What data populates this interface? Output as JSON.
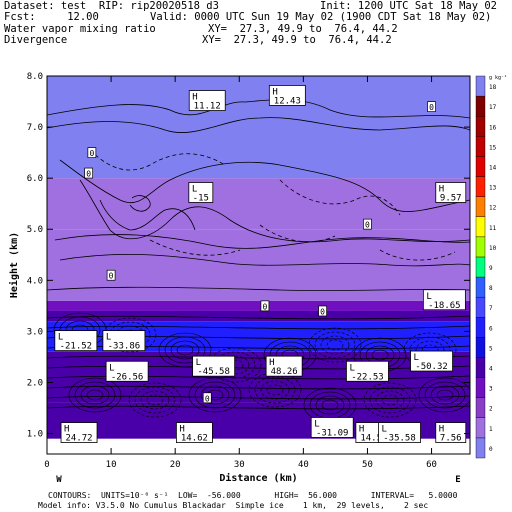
{
  "header": {
    "dataset_line": "Dataset: test  RIP: rip20020518 d3",
    "init_line": "Init: 1200 UTC Sat 18 May 02",
    "fcst_line": "Fcst:     12.00",
    "valid_line": "Valid: 0000 UTC Sun 19 May 02 (1900 CDT Sat 18 May 02)",
    "field1_line": "Water vapor mixing ratio",
    "xy1_line": "XY=  27.3, 49.9 to  76.4, 44.2",
    "field2_line": "Divergence",
    "xy2_line": "XY=  27.3, 49.9 to  76.4, 44.2"
  },
  "footer": {
    "contours_line": "CONTOURS:  UNITS=10⁻⁶ s⁻¹  LOW=  -56.000       HIGH=  56.000       INTERVAL=   5.0000",
    "model_line": "Model info: V3.5.0 No Cumulus Blackadar  Simple ice    1 km,  29 levels,    2 sec"
  },
  "colors": {
    "background": "#ffffff",
    "colorbar": [
      "#8080f0",
      "#a070e0",
      "#8a3ec8",
      "#7010c0",
      "#4a00a8",
      "#1010e0",
      "#2020ff",
      "#4848ff",
      "#3060ff",
      "#00ff80",
      "#a0ff00",
      "#ffff00",
      "#ff8000",
      "#ff2000",
      "#e00000",
      "#c00000",
      "#a00000",
      "#800000"
    ]
  },
  "chart_data": {
    "type": "heatmap",
    "title": "",
    "xlabel": "Distance (km)",
    "ylabel": "Height (km)",
    "xlim": [
      0,
      66
    ],
    "ylim": [
      0.6,
      8.0
    ],
    "x_ticks": [
      0,
      10,
      20,
      30,
      40,
      50,
      60
    ],
    "y_ticks": [
      1.0,
      2.0,
      3.0,
      4.0,
      5.0,
      6.0,
      7.0,
      8.0
    ],
    "x_end_labels": {
      "left": "W",
      "right": "E"
    },
    "colorbar": {
      "unit_label": "g kg⁻¹",
      "ticks": [
        0,
        1,
        2,
        3,
        4,
        5,
        6,
        7,
        8,
        9,
        10,
        11,
        12,
        13,
        14,
        15,
        16,
        17,
        18
      ]
    },
    "shaded_layers": [
      {
        "from_km": 0.9,
        "to_km": 1.6,
        "value_g_kg": 4
      },
      {
        "from_km": 1.6,
        "to_km": 2.6,
        "value_g_kg": 4
      },
      {
        "from_km": 2.6,
        "to_km": 3.2,
        "value_g_kg": 6
      },
      {
        "from_km": 3.2,
        "to_km": 3.4,
        "value_g_kg": 4
      },
      {
        "from_km": 3.4,
        "to_km": 3.6,
        "value_g_kg": 3
      },
      {
        "from_km": 3.6,
        "to_km": 5.0,
        "value_g_kg": 1
      },
      {
        "from_km": 5.0,
        "to_km": 6.0,
        "value_g_kg": 1
      },
      {
        "from_km": 6.0,
        "to_km": 8.0,
        "value_g_kg": 0
      }
    ],
    "extrema_labels": [
      {
        "kind": "H",
        "value": "11.12",
        "x": 25.0,
        "y": 7.5
      },
      {
        "kind": "H",
        "value": "12.43",
        "x": 37.5,
        "y": 7.6
      },
      {
        "kind": "L",
        "value": "-15",
        "x": 24.0,
        "y": 5.7
      },
      {
        "kind": "H",
        "value": "9.57",
        "x": 63.0,
        "y": 5.7
      },
      {
        "kind": "L",
        "value": "-18.65",
        "x": 62.0,
        "y": 3.6
      },
      {
        "kind": "L",
        "value": "-21.52",
        "x": 4.5,
        "y": 2.8
      },
      {
        "kind": "L",
        "value": "-33.86",
        "x": 12.0,
        "y": 2.8
      },
      {
        "kind": "L",
        "value": "-26.56",
        "x": 12.5,
        "y": 2.2
      },
      {
        "kind": "L",
        "value": "-45.58",
        "x": 26.0,
        "y": 2.3
      },
      {
        "kind": "H",
        "value": "48.26",
        "x": 37.0,
        "y": 2.3
      },
      {
        "kind": "L",
        "value": "-22.53",
        "x": 50.0,
        "y": 2.2
      },
      {
        "kind": "L",
        "value": "-50.32",
        "x": 60.0,
        "y": 2.4
      },
      {
        "kind": "H",
        "value": "24.72",
        "x": 5.0,
        "y": 1.0
      },
      {
        "kind": "H",
        "value": "14.62",
        "x": 23.0,
        "y": 1.0
      },
      {
        "kind": "L",
        "value": "-31.09",
        "x": 44.5,
        "y": 1.1
      },
      {
        "kind": "H",
        "value": "14.54",
        "x": 51.0,
        "y": 1.0
      },
      {
        "kind": "L",
        "value": "-35.58",
        "x": 55.0,
        "y": 1.0
      },
      {
        "kind": "H",
        "value": "7.56",
        "x": 63.0,
        "y": 1.0
      }
    ],
    "zero_contour_labels": [
      {
        "text": "0",
        "x": 60.0,
        "y": 7.4
      },
      {
        "text": "0",
        "x": 7.0,
        "y": 6.5
      },
      {
        "text": "0",
        "x": 6.5,
        "y": 6.1
      },
      {
        "text": "0",
        "x": 50.0,
        "y": 5.1
      },
      {
        "text": "0",
        "x": 10.0,
        "y": 4.1
      },
      {
        "text": "0",
        "x": 34.0,
        "y": 3.5
      },
      {
        "text": "0",
        "x": 43.0,
        "y": 3.4
      },
      {
        "text": "0",
        "x": 25.0,
        "y": 1.7
      }
    ]
  }
}
